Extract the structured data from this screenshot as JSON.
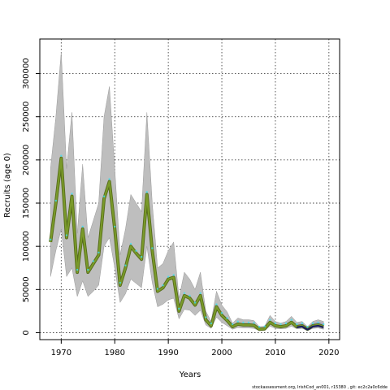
{
  "chart_data": {
    "type": "line",
    "title": "",
    "xlabel": "Years",
    "ylabel": "Recruits (age 0)",
    "footer": "stockassessment.org, IrishCod_an001, r15380 , git: ec2c2a0c6dde",
    "xlim": [
      1966,
      2022
    ],
    "ylim": [
      -8000,
      340000
    ],
    "xticks": [
      1970,
      1980,
      1990,
      2000,
      2010,
      2020
    ],
    "yticks": [
      0,
      50000,
      100000,
      150000,
      200000,
      250000,
      300000
    ],
    "grid": true,
    "legend": "none",
    "colors": {
      "band": "#bebebe",
      "band_edge": "#9a9a9a",
      "line": "#7a9a2a",
      "line_dark": "#556b1a",
      "tail_line": "#1a1a60",
      "tail_band": "#8e8ec0",
      "cyan_points": "#40e0f0",
      "grid": "#444444"
    },
    "series": [
      {
        "x": [
          1968,
          1969,
          1970,
          1971,
          1972,
          1973,
          1974,
          1975,
          1976,
          1977,
          1978,
          1979,
          1980,
          1981,
          1982,
          1983,
          1984,
          1985,
          1986,
          1987,
          1988,
          1989,
          1990,
          1991,
          1992,
          1993,
          1994,
          1995,
          1996,
          1997,
          1998,
          1999,
          2000,
          2001,
          2002,
          2003,
          2004,
          2005,
          2006,
          2007,
          2008,
          2009,
          2010,
          2011,
          2012,
          2013,
          2014,
          2015,
          2016,
          2017,
          2018,
          2019
        ],
        "values": [
          105000,
          150000,
          202000,
          110000,
          158000,
          70000,
          120000,
          70000,
          80000,
          90000,
          155000,
          175000,
          120000,
          55000,
          75000,
          100000,
          92000,
          85000,
          160000,
          95000,
          48000,
          52000,
          62000,
          64000,
          25000,
          43000,
          40000,
          32000,
          43000,
          15000,
          8000,
          30000,
          20000,
          14000,
          7000,
          10000,
          9000,
          9000,
          8500,
          4000,
          4500,
          12000,
          8000,
          7000,
          8000,
          12000,
          7000,
          8000,
          4000,
          8000,
          9000,
          7000
        ],
        "lower": [
          65000,
          95000,
          120000,
          65000,
          75000,
          42000,
          60000,
          42000,
          48000,
          55000,
          100000,
          110000,
          75000,
          35000,
          45000,
          62000,
          57000,
          52000,
          100000,
          58000,
          30000,
          33000,
          38000,
          40000,
          16000,
          27000,
          26000,
          20000,
          26000,
          9000,
          5000,
          18000,
          12000,
          8000,
          4000,
          6000,
          5500,
          5500,
          5000,
          2500,
          2800,
          7500,
          5000,
          4500,
          5000,
          7500,
          4500,
          5000,
          2500,
          5000,
          5500,
          4000
        ],
        "upper": [
          190000,
          250000,
          325000,
          190000,
          255000,
          115000,
          195000,
          110000,
          130000,
          150000,
          250000,
          285000,
          190000,
          90000,
          120000,
          160000,
          150000,
          140000,
          255000,
          150000,
          75000,
          80000,
          95000,
          105000,
          40000,
          70000,
          62000,
          50000,
          70000,
          25000,
          13000,
          48000,
          32000,
          24000,
          11000,
          17000,
          15000,
          15000,
          14000,
          7000,
          7500,
          20000,
          13000,
          11000,
          13000,
          19000,
          12000,
          13000,
          7000,
          13000,
          15000,
          13000
        ]
      }
    ]
  }
}
